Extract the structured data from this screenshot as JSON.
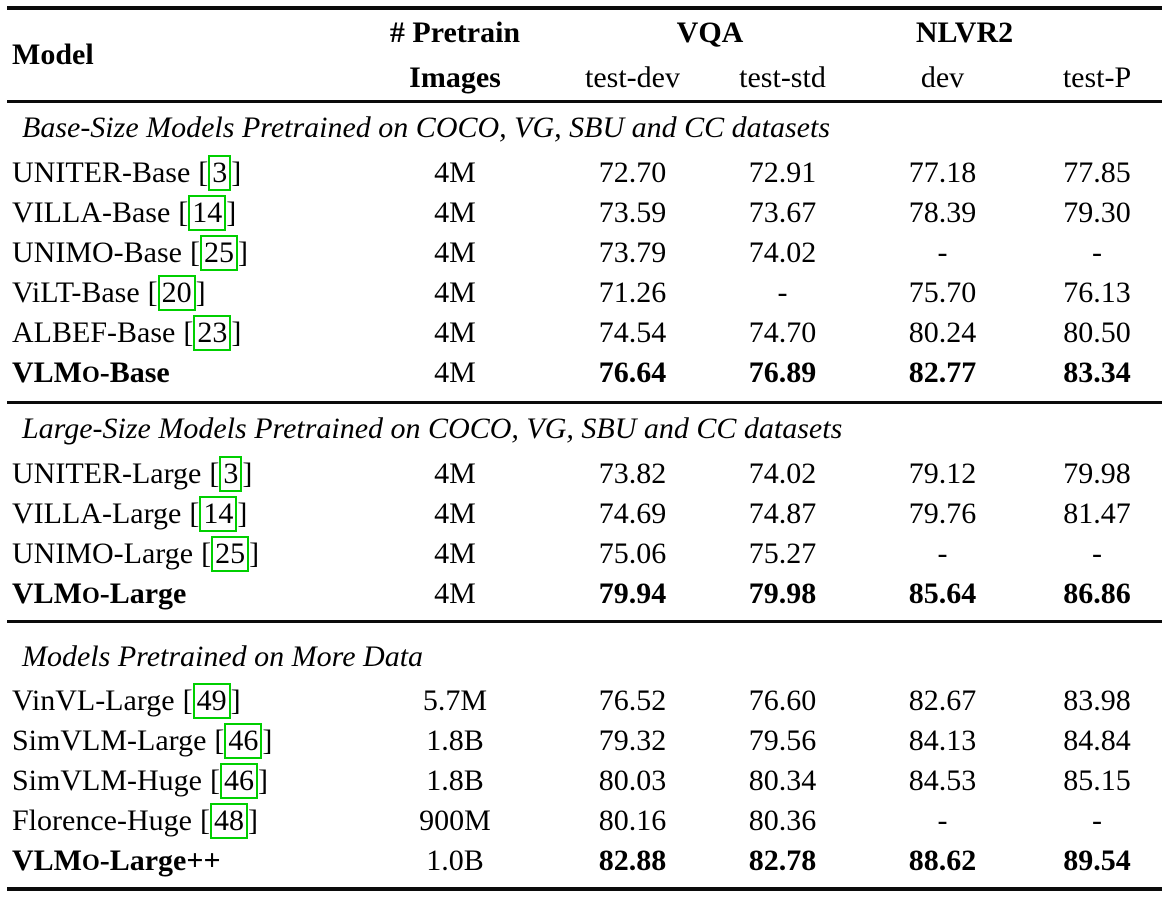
{
  "colors": {
    "text": "#000000",
    "rule": "#0b0b0b",
    "citation_box": "#00cf00",
    "background": "#ffffff"
  },
  "table": {
    "cite_open": "[",
    "cite_close": "]",
    "header": {
      "model": "Model",
      "pretrain_line1": "# Pretrain",
      "pretrain_line2": "Images",
      "vqa": "VQA",
      "nlvr2": "NLVR2",
      "sub": [
        "test-dev",
        "test-std",
        "dev",
        "test-P"
      ]
    },
    "sections": [
      {
        "title": "Base-Size Models Pretrained on COCO, VG, SBU and CC datasets",
        "rows": [
          {
            "model": "UNITER-Base",
            "cite": "3",
            "pretrain": "4M",
            "values": [
              "72.70",
              "72.91",
              "77.18",
              "77.85"
            ],
            "bold": false
          },
          {
            "model": "VILLA-Base",
            "cite": "14",
            "pretrain": "4M",
            "values": [
              "73.59",
              "73.67",
              "78.39",
              "79.30"
            ],
            "bold": false
          },
          {
            "model": "UNIMO-Base",
            "cite": "25",
            "pretrain": "4M",
            "values": [
              "73.79",
              "74.02",
              "-",
              "-"
            ],
            "bold": false
          },
          {
            "model": "ViLT-Base",
            "cite": "20",
            "pretrain": "4M",
            "values": [
              "71.26",
              "-",
              "75.70",
              "76.13"
            ],
            "bold": false
          },
          {
            "model": "ALBEF-Base",
            "cite": "23",
            "pretrain": "4M",
            "values": [
              "74.54",
              "74.70",
              "80.24",
              "80.50"
            ],
            "bold": false
          },
          {
            "model_pre": "VLM",
            "model_sc": "O",
            "model_rest": "-Base",
            "pretrain": "4M",
            "values": [
              "76.64",
              "76.89",
              "82.77",
              "83.34"
            ],
            "bold": true
          }
        ]
      },
      {
        "title": "Large-Size Models Pretrained on COCO, VG, SBU and CC datasets",
        "rows": [
          {
            "model": "UNITER-Large",
            "cite": "3",
            "pretrain": "4M",
            "values": [
              "73.82",
              "74.02",
              "79.12",
              "79.98"
            ],
            "bold": false
          },
          {
            "model": "VILLA-Large",
            "cite": "14",
            "pretrain": "4M",
            "values": [
              "74.69",
              "74.87",
              "79.76",
              "81.47"
            ],
            "bold": false
          },
          {
            "model": "UNIMO-Large",
            "cite": "25",
            "pretrain": "4M",
            "values": [
              "75.06",
              "75.27",
              "-",
              "-"
            ],
            "bold": false
          },
          {
            "model_pre": "VLM",
            "model_sc": "O",
            "model_rest": "-Large",
            "pretrain": "4M",
            "values": [
              "79.94",
              "79.98",
              "85.64",
              "86.86"
            ],
            "bold": true
          }
        ]
      },
      {
        "title": "Models Pretrained on More Data",
        "rows": [
          {
            "model": "VinVL-Large",
            "cite": "49",
            "pretrain": "5.7M",
            "values": [
              "76.52",
              "76.60",
              "82.67",
              "83.98"
            ],
            "bold": false
          },
          {
            "model": "SimVLM-Large",
            "cite": "46",
            "pretrain": "1.8B",
            "values": [
              "79.32",
              "79.56",
              "84.13",
              "84.84"
            ],
            "bold": false
          },
          {
            "model": "SimVLM-Huge",
            "cite": "46",
            "pretrain": "1.8B",
            "values": [
              "80.03",
              "80.34",
              "84.53",
              "85.15"
            ],
            "bold": false
          },
          {
            "model": "Florence-Huge",
            "cite": "48",
            "pretrain": "900M",
            "values": [
              "80.16",
              "80.36",
              "-",
              "-"
            ],
            "bold": false
          },
          {
            "model_pre": "VLM",
            "model_sc": "O",
            "model_rest": "-Large++",
            "pretrain": "1.0B",
            "values": [
              "82.88",
              "82.78",
              "88.62",
              "89.54"
            ],
            "bold": true
          }
        ]
      }
    ]
  }
}
